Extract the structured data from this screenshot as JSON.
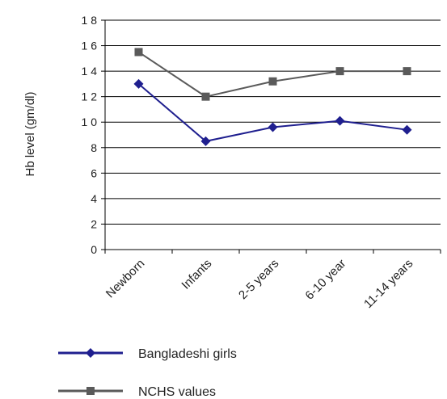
{
  "chart_data": {
    "type": "line",
    "ylabel": "Hb level (gm/dl)",
    "xlabel": "",
    "categories": [
      "Newborn",
      "Infants",
      "2-5 years",
      "6-10 year",
      "11-14 years"
    ],
    "ylim": [
      0,
      18
    ],
    "yticks": [
      0,
      2,
      4,
      6,
      8,
      10,
      12,
      14,
      16,
      18
    ],
    "ytick_labels": [
      "0",
      "2",
      "4",
      "6",
      "8",
      "1 0",
      "1 2",
      "1 4",
      "1 6",
      "1 8"
    ],
    "grid": "horizontal",
    "legend_position": "bottom",
    "series": [
      {
        "name": "Bangladeshi girls",
        "values": [
          13.0,
          8.5,
          9.6,
          10.1,
          9.4
        ],
        "color": "#1f1f8f",
        "marker": "diamond"
      },
      {
        "name": "NCHS values",
        "values": [
          15.5,
          12.0,
          13.2,
          14.0,
          14.0
        ],
        "color": "#5a5a5a",
        "marker": "square"
      }
    ]
  }
}
